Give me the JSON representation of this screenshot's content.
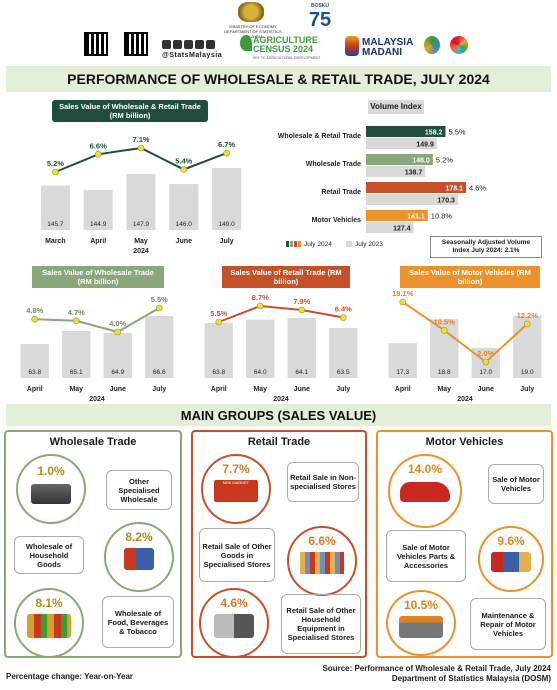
{
  "header": {
    "ministry": "MINISTRY OF ECONOMY",
    "dept": "DEPARTMENT OF STATISTICS MALAYSIA",
    "handle": "@StatsMalaysia",
    "bosku": "BOSKU",
    "bosku_num": "75",
    "census": "AGRICULTURE CENSUS 2024",
    "census_tag": "KEY TO AGRICULTURAL DEVELOPMENT",
    "madani": "MALAYSIA MADANI"
  },
  "title": "PERFORMANCE OF WHOLESALE & RETAIL TRADE, JULY 2024",
  "main_groups_title": "MAIN GROUPS (SALES VALUE)",
  "colors": {
    "dark_green": "#1f4e3d",
    "sage": "#8aa67b",
    "rust": "#c4512a",
    "orange": "#ea922b",
    "bar_grey": "#d9d9d9",
    "line_yellow": "#e8e23b"
  },
  "chart_data": [
    {
      "id": "total",
      "type": "bar+line",
      "title": "Sales Value of Wholesale & Retail Trade (RM billion)",
      "categories": [
        "March",
        "April",
        "May",
        "June",
        "July"
      ],
      "values": [
        145.7,
        144.9,
        147.9,
        146.0,
        149.0
      ],
      "growth": [
        "5.2%",
        "6.6%",
        "7.1%",
        "5.4%",
        "6.7%"
      ],
      "growth_values": [
        5.2,
        6.6,
        7.1,
        5.4,
        6.7
      ],
      "xlabel": "2024"
    },
    {
      "id": "volume",
      "type": "hbar",
      "title": "Volume Index",
      "categories": [
        "Wholesale & Retail Trade",
        "Wholesale Trade",
        "Retail Trade",
        "Motor Vehicles"
      ],
      "series": [
        {
          "name": "July 2024",
          "values": [
            158.2,
            146.0,
            178.1,
            141.1
          ]
        },
        {
          "name": "July 2023",
          "values": [
            149.9,
            138.7,
            170.3,
            127.4
          ]
        }
      ],
      "growth": [
        "5.5%",
        "5.2%",
        "4.6%",
        "10.8%"
      ],
      "note": "Seasonally Adjusted Volume Index July 2024: 2.1%"
    },
    {
      "id": "wholesale",
      "type": "bar+line",
      "title": "Sales Value of Wholesale Trade (RM billion)",
      "categories": [
        "April",
        "May",
        "June",
        "July"
      ],
      "values": [
        63.8,
        65.1,
        64.9,
        66.6
      ],
      "growth": [
        "4.8%",
        "4.7%",
        "4.0%",
        "5.5%"
      ],
      "growth_values": [
        4.8,
        4.7,
        4.0,
        5.5
      ],
      "xlabel": "2024"
    },
    {
      "id": "retail",
      "type": "bar+line",
      "title": "Sales Value of Retail Trade (RM billion)",
      "categories": [
        "April",
        "May",
        "June",
        "July"
      ],
      "values": [
        63.8,
        64.0,
        64.1,
        63.5
      ],
      "growth": [
        "5.5%",
        "8.7%",
        "7.9%",
        "6.4%"
      ],
      "growth_values": [
        5.5,
        8.7,
        7.9,
        6.4
      ],
      "xlabel": "2024"
    },
    {
      "id": "motor",
      "type": "bar+line",
      "title": "Sales Value of Motor Vehicles (RM billion)",
      "categories": [
        "April",
        "May",
        "June",
        "July"
      ],
      "values": [
        17.3,
        18.8,
        17.0,
        19.0
      ],
      "growth": [
        "18.1%",
        "10.5%",
        "2.0%",
        "12.2%"
      ],
      "growth_values": [
        18.1,
        10.5,
        2.0,
        12.2
      ],
      "xlabel": "2024"
    }
  ],
  "groups": {
    "wholesale": {
      "title": "Wholesale Trade",
      "items": [
        {
          "pct": "1.0%",
          "label": "Other Specialised Wholesale"
        },
        {
          "pct": "8.2%",
          "label": "Wholesale of Household Goods"
        },
        {
          "pct": "8.1%",
          "label": "Wholesale of Food, Beverages & Tobacco"
        }
      ]
    },
    "retail": {
      "title": "Retail Trade",
      "items": [
        {
          "pct": "7.7%",
          "label": "Retail Sale in Non-specialised Stores"
        },
        {
          "pct": "6.6%",
          "label": "Retail Sale of Other Goods in Specialised Stores"
        },
        {
          "pct": "4.6%",
          "label": "Retail Sale of Other Household Equipment in Specialised Stores"
        }
      ]
    },
    "motor": {
      "title": "Motor Vehicles",
      "items": [
        {
          "pct": "14.0%",
          "label": "Sale of Motor Vehicles"
        },
        {
          "pct": "9.6%",
          "label": "Sale of Motor Vehicles Parts & Accessories"
        },
        {
          "pct": "10.5%",
          "label": "Maintenance & Repair of Motor Vehicles"
        }
      ]
    }
  },
  "mini_market": "MINI MARKET",
  "footer": {
    "note": "Percentage change: Year-on-Year",
    "source1": "Source: Performance of Wholesale & Retail Trade, July 2024",
    "source2": "Department of Statistics Malaysia (DOSM)"
  }
}
